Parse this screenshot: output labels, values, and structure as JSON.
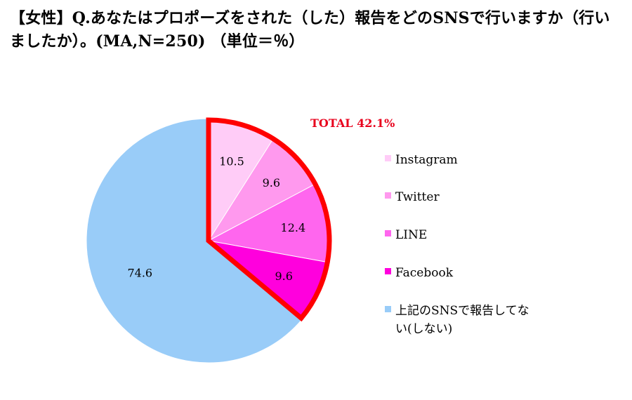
{
  "chart_data": {
    "type": "pie",
    "title": "【女性】Q.あなたはプロポーズをされた（した）報告をどのSNSで行いますか（行いましたか）。(MA,N=250) （単位＝％）",
    "categories": [
      "Instagram",
      "Twitter",
      "LINE",
      "Facebook",
      "上記のSNSで報告してない(しない)"
    ],
    "values": [
      10.5,
      9.6,
      12.4,
      9.6,
      74.6
    ],
    "value_labels": [
      "10.5",
      "9.6",
      "12.4",
      "9.6",
      "74.6"
    ],
    "colors": [
      "#ffccf7",
      "#ff99ee",
      "#ff66ee",
      "#ff00dd",
      "#99ccf8"
    ],
    "highlight": {
      "label": "TOTAL 42.1%",
      "color": "#ff0000",
      "categories": [
        "Instagram",
        "Twitter",
        "LINE",
        "Facebook"
      ]
    },
    "legend_position": "right",
    "legend": [
      {
        "label": "Instagram",
        "color": "#ffccf7"
      },
      {
        "label": "Twitter",
        "color": "#ff99ee"
      },
      {
        "label": "LINE",
        "color": "#ff66ee"
      },
      {
        "label": "Facebook",
        "color": "#ff00dd"
      },
      {
        "label_line1": "上記のSNSで報告してな",
        "label_line2": "い(しない)",
        "color": "#99ccf8"
      }
    ]
  }
}
